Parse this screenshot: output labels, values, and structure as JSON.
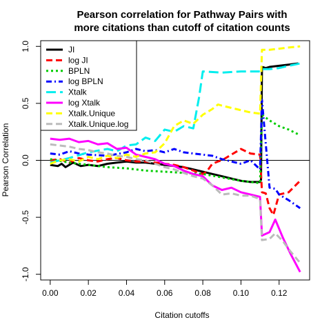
{
  "chart_data": {
    "type": "line",
    "title_lines": [
      "Pearson correlation for Pathway Pairs with",
      "more citations than cutoff of citation counts"
    ],
    "xlabel": "Citation cutoffs",
    "ylabel": "Pearson Correlation",
    "xlim": [
      -0.005,
      0.136
    ],
    "ylim": [
      -1.05,
      1.05
    ],
    "xticks": [
      0.0,
      0.02,
      0.04,
      0.06,
      0.08,
      0.1,
      0.12
    ],
    "xtick_labels": [
      "0.00",
      "0.02",
      "0.04",
      "0.06",
      "0.08",
      "0.10",
      "0.12"
    ],
    "yticks": [
      -1.0,
      -0.5,
      0.0,
      0.5,
      1.0
    ],
    "ytick_labels": [
      "-1.0",
      "-0.5",
      "0.0",
      "0.5",
      "1.0"
    ],
    "hline": 0,
    "legend_position": "top-left",
    "series": [
      {
        "name": "JI",
        "color": "#000000",
        "dash": "solid",
        "x": [
          0.0,
          0.004,
          0.006,
          0.008,
          0.012,
          0.016,
          0.02,
          0.025,
          0.03,
          0.035,
          0.04,
          0.045,
          0.05,
          0.055,
          0.06,
          0.065,
          0.07,
          0.075,
          0.08,
          0.085,
          0.09,
          0.095,
          0.1,
          0.105,
          0.11,
          0.1105,
          0.111,
          0.113,
          0.115,
          0.12,
          0.125,
          0.13
        ],
        "y": [
          -0.04,
          -0.05,
          -0.03,
          -0.06,
          -0.02,
          -0.05,
          -0.04,
          -0.05,
          -0.03,
          -0.02,
          -0.01,
          -0.02,
          -0.02,
          -0.03,
          -0.04,
          -0.05,
          -0.06,
          -0.08,
          -0.1,
          -0.12,
          -0.14,
          -0.16,
          -0.18,
          -0.19,
          -0.19,
          -0.17,
          0.82,
          0.81,
          0.82,
          0.83,
          0.84,
          0.85
        ]
      },
      {
        "name": "log JI",
        "color": "#ff0000",
        "dash": "dashed",
        "x": [
          0.0,
          0.005,
          0.01,
          0.015,
          0.02,
          0.025,
          0.03,
          0.035,
          0.04,
          0.045,
          0.05,
          0.055,
          0.06,
          0.065,
          0.07,
          0.075,
          0.08,
          0.082,
          0.085,
          0.088,
          0.09,
          0.095,
          0.1,
          0.105,
          0.11,
          0.111,
          0.113,
          0.115,
          0.117,
          0.12,
          0.125,
          0.131
        ],
        "y": [
          0.0,
          0.01,
          -0.02,
          0.02,
          0.0,
          -0.01,
          0.01,
          0.02,
          0.0,
          -0.01,
          -0.01,
          -0.02,
          -0.03,
          -0.04,
          -0.06,
          -0.09,
          -0.12,
          -0.1,
          -0.03,
          -0.01,
          0.0,
          0.05,
          0.1,
          0.06,
          0.05,
          -0.28,
          -0.29,
          -0.42,
          -0.48,
          -0.3,
          -0.28,
          -0.18
        ]
      },
      {
        "name": "BPLN",
        "color": "#00cc00",
        "dash": "dotted",
        "x": [
          0.0,
          0.01,
          0.02,
          0.03,
          0.04,
          0.05,
          0.06,
          0.07,
          0.08,
          0.09,
          0.1,
          0.105,
          0.11,
          0.111,
          0.115,
          0.12,
          0.125,
          0.131
        ],
        "y": [
          0.01,
          -0.02,
          -0.04,
          -0.06,
          -0.07,
          -0.09,
          -0.1,
          -0.11,
          -0.12,
          -0.15,
          -0.18,
          -0.19,
          -0.2,
          0.4,
          0.35,
          0.3,
          0.27,
          0.22
        ]
      },
      {
        "name": "log BPLN",
        "color": "#0000ff",
        "dash": "dashdot",
        "x": [
          0.0,
          0.005,
          0.01,
          0.015,
          0.02,
          0.03,
          0.04,
          0.045,
          0.05,
          0.055,
          0.06,
          0.065,
          0.07,
          0.075,
          0.08,
          0.085,
          0.09,
          0.095,
          0.1,
          0.105,
          0.11,
          0.111,
          0.115,
          0.118,
          0.12,
          0.125,
          0.131
        ],
        "y": [
          0.06,
          0.05,
          0.08,
          0.06,
          0.05,
          0.04,
          0.07,
          0.1,
          0.08,
          0.09,
          0.07,
          0.1,
          0.07,
          0.06,
          0.05,
          0.04,
          0.01,
          -0.01,
          -0.03,
          0.0,
          -0.08,
          0.53,
          -0.24,
          -0.25,
          -0.3,
          -0.35,
          -0.42
        ]
      },
      {
        "name": "Xtalk",
        "color": "#00eeee",
        "dash": "longdash",
        "x": [
          0.0,
          0.01,
          0.02,
          0.03,
          0.035,
          0.04,
          0.045,
          0.05,
          0.055,
          0.06,
          0.065,
          0.07,
          0.075,
          0.078,
          0.08,
          0.09,
          0.1,
          0.11,
          0.111,
          0.115,
          0.12,
          0.125,
          0.131
        ],
        "y": [
          -0.02,
          0.02,
          0.07,
          0.1,
          0.08,
          0.13,
          0.14,
          0.2,
          0.17,
          0.27,
          0.25,
          0.3,
          0.28,
          0.55,
          0.78,
          0.77,
          0.78,
          0.78,
          0.8,
          0.8,
          0.81,
          0.83,
          0.85
        ]
      },
      {
        "name": "log Xtalk",
        "color": "#ff00ff",
        "dash": "solid",
        "x": [
          0.0,
          0.005,
          0.01,
          0.015,
          0.02,
          0.025,
          0.03,
          0.035,
          0.04,
          0.045,
          0.05,
          0.055,
          0.06,
          0.065,
          0.07,
          0.075,
          0.08,
          0.085,
          0.09,
          0.095,
          0.1,
          0.105,
          0.11,
          0.111,
          0.115,
          0.118,
          0.122,
          0.126,
          0.131
        ],
        "y": [
          0.19,
          0.18,
          0.19,
          0.16,
          0.17,
          0.14,
          0.15,
          0.1,
          0.11,
          0.05,
          0.03,
          0.01,
          -0.03,
          -0.05,
          -0.09,
          -0.12,
          -0.14,
          -0.22,
          -0.26,
          -0.24,
          -0.28,
          -0.3,
          -0.32,
          -0.66,
          -0.63,
          -0.52,
          -0.68,
          -0.82,
          -0.98
        ]
      },
      {
        "name": "Xtalk.Unique",
        "color": "#ffff00",
        "dash": "dashed",
        "x": [
          0.0,
          0.005,
          0.01,
          0.015,
          0.02,
          0.025,
          0.03,
          0.035,
          0.04,
          0.045,
          0.05,
          0.055,
          0.06,
          0.065,
          0.07,
          0.075,
          0.08,
          0.085,
          0.088,
          0.09,
          0.095,
          0.1,
          0.105,
          0.11,
          0.111,
          0.115,
          0.12,
          0.125,
          0.131
        ],
        "y": [
          -0.03,
          0.0,
          0.01,
          -0.01,
          0.03,
          0.01,
          0.04,
          0.02,
          0.05,
          0.03,
          0.06,
          0.07,
          0.15,
          0.3,
          0.35,
          0.32,
          0.4,
          0.45,
          0.49,
          0.48,
          0.46,
          0.44,
          0.42,
          0.41,
          0.97,
          0.97,
          0.98,
          0.99,
          1.0
        ]
      },
      {
        "name": "Xtalk.Unique.log",
        "color": "#bbbbbb",
        "dash": "dashed",
        "x": [
          0.0,
          0.005,
          0.01,
          0.015,
          0.02,
          0.025,
          0.03,
          0.035,
          0.04,
          0.045,
          0.05,
          0.055,
          0.06,
          0.065,
          0.07,
          0.075,
          0.08,
          0.085,
          0.09,
          0.095,
          0.1,
          0.105,
          0.11,
          0.111,
          0.115,
          0.118,
          0.122,
          0.126,
          0.131
        ],
        "y": [
          0.14,
          0.13,
          0.12,
          0.1,
          0.09,
          0.07,
          0.06,
          0.04,
          0.03,
          0.01,
          0.0,
          -0.03,
          -0.06,
          -0.08,
          -0.11,
          -0.14,
          -0.16,
          -0.22,
          -0.3,
          -0.29,
          -0.31,
          -0.31,
          -0.34,
          -0.7,
          -0.69,
          -0.64,
          -0.71,
          -0.8,
          -0.9
        ]
      }
    ]
  }
}
